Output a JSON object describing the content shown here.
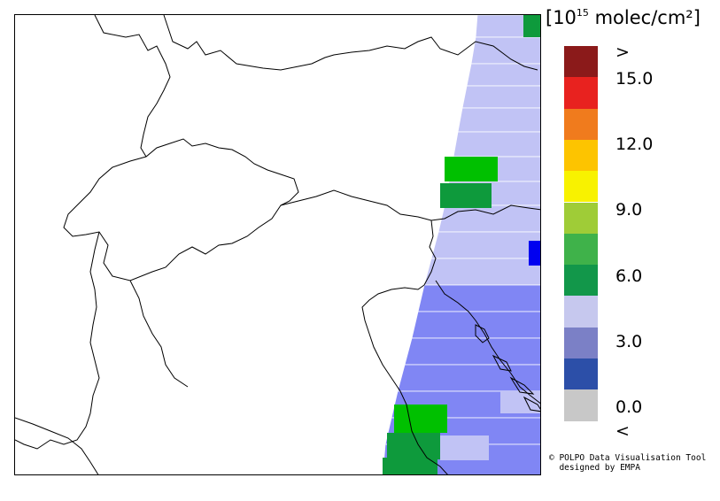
{
  "unit": {
    "prefix": "[10",
    "exponent": "15",
    "suffix": " molec/cm²]"
  },
  "legend": {
    "bins": [
      {
        "label": ">",
        "color": "#8b1a1a"
      },
      {
        "label": "",
        "color": "#e8221f"
      },
      {
        "label": "",
        "color": "#f07b1d"
      },
      {
        "label": "",
        "color": "#fdc400"
      },
      {
        "label": "",
        "color": "#f8f200"
      },
      {
        "label": "",
        "color": "#9fcc37"
      },
      {
        "label": "",
        "color": "#3fb24a"
      },
      {
        "label": "",
        "color": "#12974a"
      },
      {
        "label": "",
        "color": "#c6c8ee"
      },
      {
        "label": "",
        "color": "#7b80c6"
      },
      {
        "label": "",
        "color": "#2c4fa8"
      },
      {
        "label": "<",
        "color": "#c8c8c8"
      }
    ],
    "ticks": [
      "15.0",
      "12.0",
      "9.0",
      "6.0",
      "3.0",
      "0.0"
    ]
  },
  "credit": {
    "line1": "© POLPO Data Visualisation Tool",
    "line2": "  designed by EMPA"
  },
  "map": {
    "pixel_colors": {
      "light": "#c1c3f5",
      "medium": "#8086f4",
      "green": "#00c000",
      "darkgreen": "#0e9a3c",
      "blue": "#0000f0"
    }
  }
}
